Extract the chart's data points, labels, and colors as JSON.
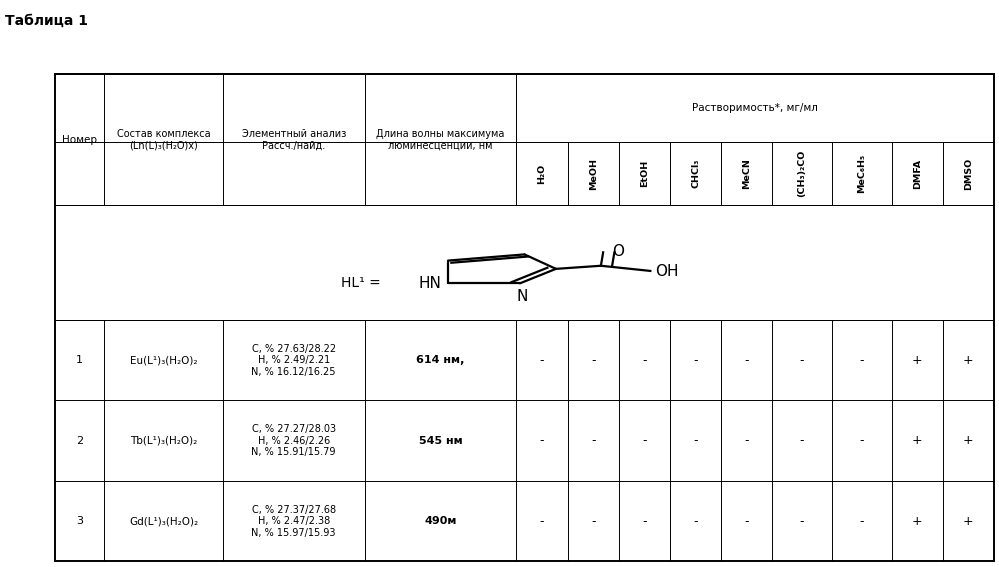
{
  "title": "Таблица 1",
  "solubility_header": "Растворимость*, мг/мл",
  "col0_header": "Номер",
  "col1_header": "Состав комплекса\n(Ln(L)₃(H₂O)x)",
  "col2_header": "Элементный анализ\nРассч./найд.",
  "col3_header": "Длина волны максимума\nлюминесценции, нм",
  "solubility_cols": [
    "H₂O",
    "MeOH",
    "EtOH",
    "CHCl₃",
    "MeCN",
    "(CH₃)₂CO",
    "MeC₆H₅",
    "DMFA",
    "DMSO"
  ],
  "ligand_label": "HL¹ =",
  "rows": [
    {
      "num": "1",
      "composition": "Eu(L¹)₃(H₂O)₂",
      "analysis": "C, % 27.63/28.22\nH, % 2.49/2.21\nN, % 16.12/16.25",
      "wavelength": "614 нм,",
      "solubility": [
        "-",
        "-",
        "-",
        "-",
        "-",
        "-",
        "-",
        "+",
        "+"
      ]
    },
    {
      "num": "2",
      "composition": "Tb(L¹)₃(H₂O)₂",
      "analysis": "C, % 27.27/28.03\nH, % 2.46/2.26\nN, % 15.91/15.79",
      "wavelength": "545 нм",
      "solubility": [
        "-",
        "-",
        "-",
        "-",
        "-",
        "-",
        "-",
        "+",
        "+"
      ]
    },
    {
      "num": "3",
      "composition": "Gd(L¹)₃(H₂O)₂",
      "analysis": "C, % 27.37/27.68\nH, % 2.47/2.38\nN, % 15.97/15.93",
      "wavelength": "490м",
      "solubility": [
        "-",
        "-",
        "-",
        "-",
        "-",
        "-",
        "-",
        "+",
        "+"
      ]
    }
  ],
  "bg_color": "#ffffff",
  "line_color": "#000000",
  "text_color": "#000000",
  "lm": 0.055,
  "rm": 0.995,
  "tm": 0.87,
  "bm": 0.01,
  "col_props": [
    0.052,
    0.125,
    0.15,
    0.16,
    0.054,
    0.054,
    0.054,
    0.054,
    0.054,
    0.063,
    0.063,
    0.054,
    0.054
  ],
  "row_props": [
    0.14,
    0.13,
    0.235,
    0.165,
    0.165,
    0.165
  ]
}
